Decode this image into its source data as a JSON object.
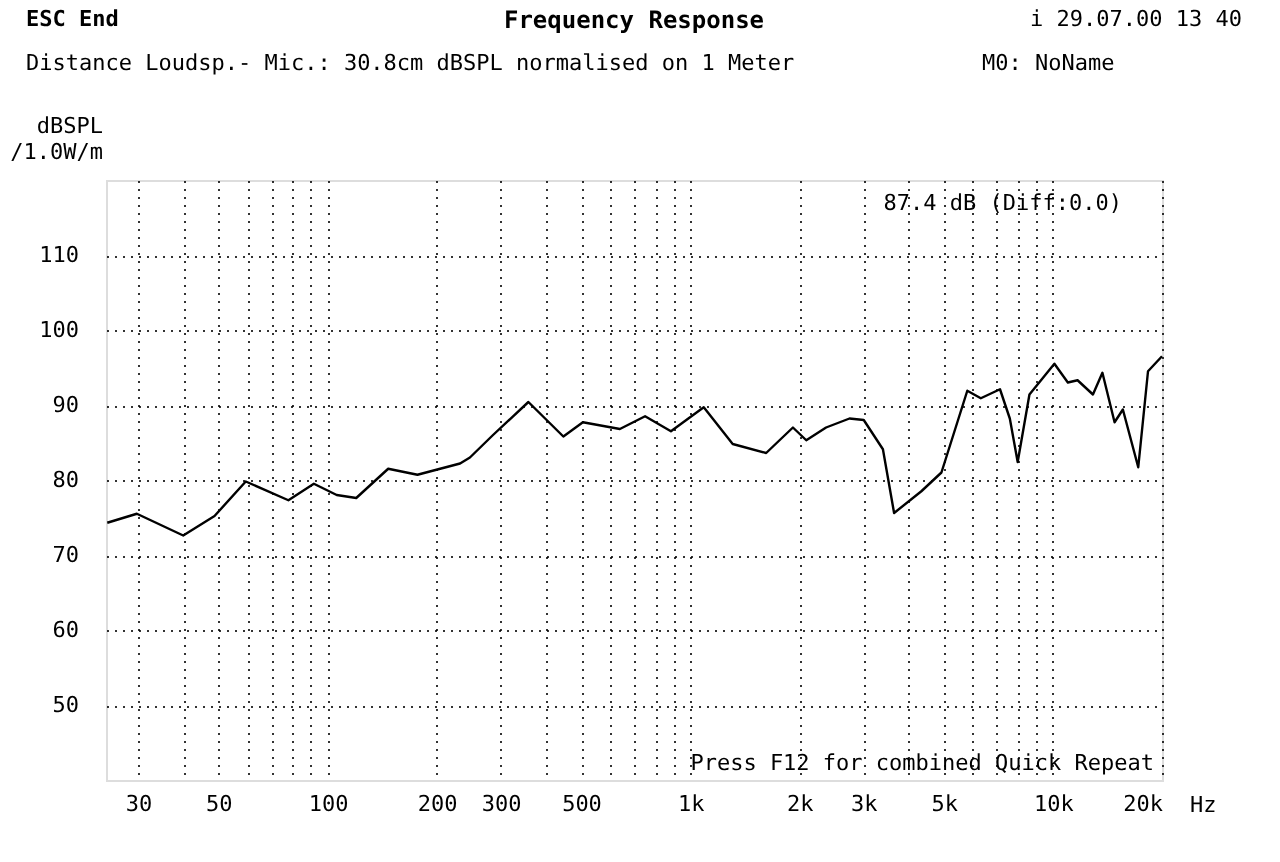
{
  "chart_data": {
    "type": "line",
    "title": "Frequency Response",
    "subtitle": "Distance Loudsp.- Mic.: 30.8cm dBSPL normalised on 1 Meter",
    "ylabel": "dBSPL /1.0W/m",
    "annotations": [
      "ESC End",
      "i 29.07.00 13 40",
      "M0: NoName",
      "87.4 dB (Diff:0.0)",
      "Press F12 for combined Quick Repeat"
    ],
    "x": [
      24.7,
      29.8,
      40,
      48.8,
      59.5,
      78,
      91.7,
      106,
      120,
      147,
      177,
      232,
      247,
      286,
      358,
      447,
      506,
      640,
      751,
      885,
      1090,
      1310,
      1620,
      1920,
      2090,
      2370,
      2750,
      3010,
      3400,
      3650,
      4340,
      4930,
      5810,
      6330,
      7150,
      7610,
      8000,
      8620,
      10100,
      11000,
      11700,
      12900,
      13700,
      14800,
      15600,
      17200,
      18300,
      20000
    ],
    "series": [
      {
        "color": "#000000",
        "values": [
          74.3,
          75.5,
          72.6,
          75.2,
          79.8,
          77.3,
          79.5,
          78,
          77.6,
          81.5,
          80.7,
          82.2,
          83,
          86,
          90.4,
          85.8,
          87.7,
          86.8,
          88.5,
          86.5,
          89.7,
          84.8,
          83.6,
          87,
          85.3,
          87,
          88.2,
          88,
          84.1,
          75.6,
          78.5,
          81,
          91.9,
          90.9,
          92.1,
          88.2,
          82.4,
          91.4,
          95.5,
          93,
          93.3,
          91.4,
          94.3,
          87.7,
          89.4,
          81.7,
          94.5,
          96.5
        ]
      }
    ],
    "log": "x",
    "grid": true,
    "line_style": "solid",
    "marker": "none",
    "xlim": [
      24.5,
      20000
    ],
    "xticks": [
      {
        "value": 30,
        "label": "30"
      },
      {
        "value": 40,
        "label": null
      },
      {
        "value": 50,
        "label": "50"
      },
      {
        "value": 60,
        "label": null
      },
      {
        "value": 70,
        "label": null
      },
      {
        "value": 80,
        "label": null
      },
      {
        "value": 90,
        "label": null
      },
      {
        "value": 100,
        "label": "100"
      },
      {
        "value": 200,
        "label": "200"
      },
      {
        "value": 300,
        "label": "300"
      },
      {
        "value": 400,
        "label": null
      },
      {
        "value": 500,
        "label": "500"
      },
      {
        "value": 600,
        "label": null
      },
      {
        "value": 700,
        "label": null
      },
      {
        "value": 800,
        "label": null
      },
      {
        "value": 900,
        "label": null
      },
      {
        "value": 1000,
        "label": "1k"
      },
      {
        "value": 2000,
        "label": "2k"
      },
      {
        "value": 3000,
        "label": "3k"
      },
      {
        "value": 4000,
        "label": null
      },
      {
        "value": 5000,
        "label": "5k"
      },
      {
        "value": 6000,
        "label": null
      },
      {
        "value": 7000,
        "label": null
      },
      {
        "value": 8000,
        "label": null
      },
      {
        "value": 9000,
        "label": null
      },
      {
        "value": 10000,
        "label": "10k"
      },
      {
        "value": 20000,
        "label": "20k"
      }
    ],
    "xlabel": "Hz",
    "ylim": [
      40,
      120
    ],
    "yticks": [
      50,
      60,
      70,
      80,
      90,
      100,
      110
    ]
  }
}
